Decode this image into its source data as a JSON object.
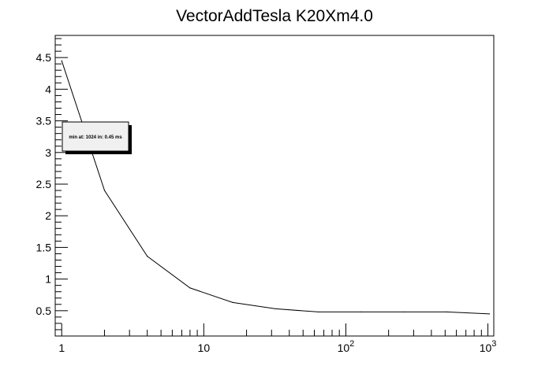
{
  "chart_data": {
    "type": "line",
    "title": "VectorAddTesla K20Xm4.0",
    "xlabel": "",
    "ylabel": "",
    "x_scale": "log",
    "xlim": [
      0.9,
      1100
    ],
    "ylim": [
      0.1,
      4.85
    ],
    "grid": false,
    "legend": "none",
    "x_tick_labels": [
      {
        "value": 1,
        "base": "1",
        "exp": ""
      },
      {
        "value": 10,
        "base": "10",
        "exp": ""
      },
      {
        "value": 100,
        "base": "10",
        "exp": "2"
      },
      {
        "value": 1000,
        "base": "10",
        "exp": "3"
      }
    ],
    "y_ticks": [
      0.5,
      1,
      1.5,
      2,
      2.5,
      3,
      3.5,
      4,
      4.5
    ],
    "y_tick_labels": [
      "0.5",
      "1",
      "1.5",
      "2",
      "2.5",
      "3",
      "3.5",
      "4",
      "4.5"
    ],
    "series": [
      {
        "x": [
          1,
          2,
          4,
          8,
          16,
          32,
          64,
          128,
          256,
          512,
          1024
        ],
        "y": [
          4.45,
          2.4,
          1.36,
          0.86,
          0.63,
          0.53,
          0.48,
          0.48,
          0.48,
          0.48,
          0.45
        ],
        "color": "#000000"
      }
    ],
    "annotations": [
      {
        "text": "min at: 1024 in: 0.45 ms"
      }
    ]
  }
}
